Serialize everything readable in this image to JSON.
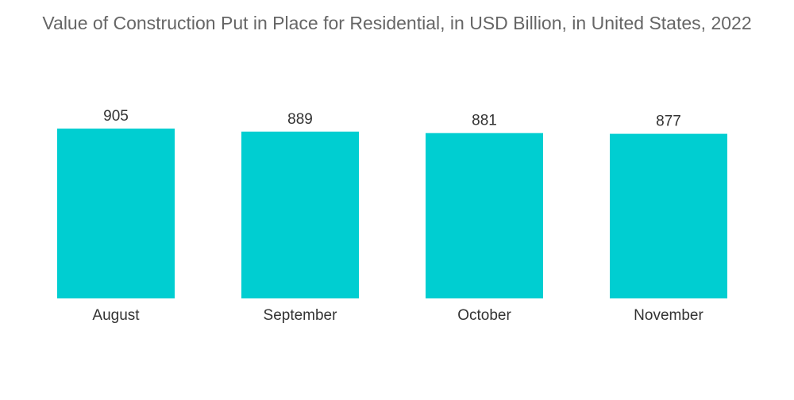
{
  "chart_data": {
    "type": "bar",
    "title": "Value of Construction Put in Place for Residential, in USD Billion, in United States, 2022",
    "categories": [
      "August",
      "September",
      "October",
      "November"
    ],
    "values": [
      905,
      889,
      881,
      877
    ],
    "xlabel": "",
    "ylabel": "",
    "ylim": [
      0,
      905
    ],
    "grid": false,
    "legend": "none",
    "colors": {
      "bar": "#00CED1",
      "text": "#333333",
      "title": "#666666"
    }
  }
}
